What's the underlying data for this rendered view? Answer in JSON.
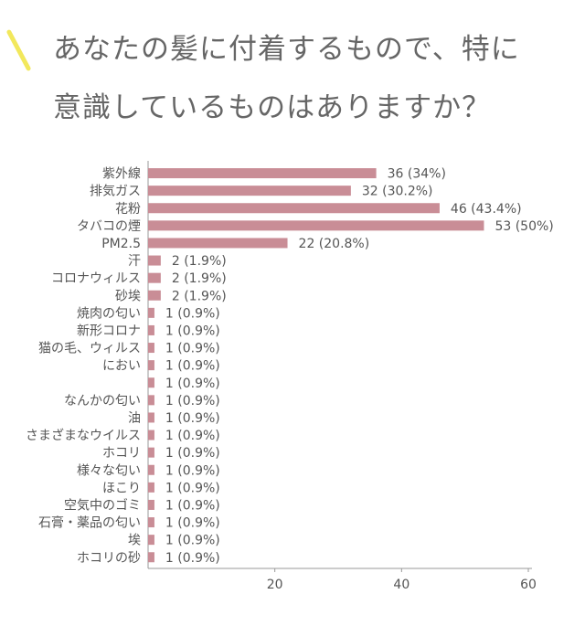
{
  "title": "あなたの髪に付着するもので、特に\n意識しているものはありますか？",
  "accent_color": "#f2e85c",
  "bar_color": "#c98d96",
  "axis_color": "#999999",
  "chart_data": {
    "type": "bar",
    "orientation": "horizontal",
    "categories": [
      "紫外線",
      "排気ガス",
      "花粉",
      "タバコの煙",
      "PM2.5",
      "汗",
      "コロナウィルス",
      "砂埃",
      "焼肉の匂い",
      "新形コロナ",
      "猫の毛、ウィルス",
      "におい",
      "",
      "なんかの匂い",
      "油",
      "さまざまなウイルス",
      "ホコリ",
      "様々な匂い",
      "ほこり",
      "空気中のゴミ",
      "石膏・薬品の匂い",
      "埃",
      "ホコリの砂"
    ],
    "values": [
      36,
      32,
      46,
      53,
      22,
      2,
      2,
      2,
      1,
      1,
      1,
      1,
      1,
      1,
      1,
      1,
      1,
      1,
      1,
      1,
      1,
      1,
      1
    ],
    "value_labels": [
      "36 (34%)",
      "32 (30.2%)",
      "46 (43.4%)",
      "53 (50%)",
      "22 (20.8%)",
      "2 (1.9%)",
      "2 (1.9%)",
      "2 (1.9%)",
      "1 (0.9%)",
      "1 (0.9%)",
      "1 (0.9%)",
      "1 (0.9%)",
      "1 (0.9%)",
      "1 (0.9%)",
      "1 (0.9%)",
      "1 (0.9%)",
      "1 (0.9%)",
      "1 (0.9%)",
      "1 (0.9%)",
      "1 (0.9%)",
      "1 (0.9%)",
      "1 (0.9%)",
      "1 (0.9%)"
    ],
    "xticks": [
      20,
      40,
      60
    ],
    "xlim": [
      0,
      60
    ],
    "grid": false
  }
}
